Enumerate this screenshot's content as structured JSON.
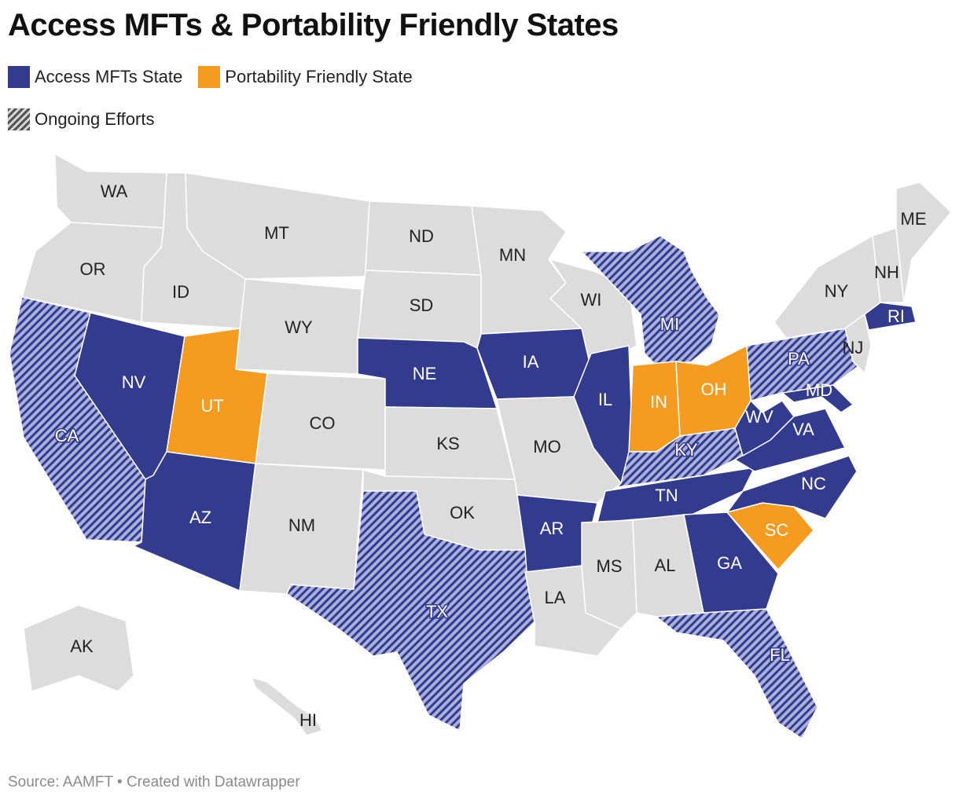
{
  "title": "Access MFTs & Portability Friendly States",
  "legend": {
    "access_label": "Access MFTs State",
    "portability_label": "Portability Friendly State",
    "ongoing_label": "Ongoing Efforts"
  },
  "colors": {
    "access": "#333b8f",
    "portability": "#f59b1f",
    "none": "#dcdcdc",
    "hatch_base": "#aab0dc",
    "hatch_line": "#333b8f"
  },
  "source": "Source: AAMFT • Created with Datawrapper",
  "states": [
    {
      "abbr": "WA",
      "status": "none"
    },
    {
      "abbr": "OR",
      "status": "none"
    },
    {
      "abbr": "CA",
      "status": "ongoing"
    },
    {
      "abbr": "NV",
      "status": "access"
    },
    {
      "abbr": "ID",
      "status": "none"
    },
    {
      "abbr": "MT",
      "status": "none"
    },
    {
      "abbr": "WY",
      "status": "none"
    },
    {
      "abbr": "UT",
      "status": "portability"
    },
    {
      "abbr": "AZ",
      "status": "access"
    },
    {
      "abbr": "CO",
      "status": "none"
    },
    {
      "abbr": "NM",
      "status": "none"
    },
    {
      "abbr": "ND",
      "status": "none"
    },
    {
      "abbr": "SD",
      "status": "none"
    },
    {
      "abbr": "NE",
      "status": "access"
    },
    {
      "abbr": "KS",
      "status": "none"
    },
    {
      "abbr": "OK",
      "status": "none"
    },
    {
      "abbr": "TX",
      "status": "ongoing"
    },
    {
      "abbr": "MN",
      "status": "none"
    },
    {
      "abbr": "IA",
      "status": "access"
    },
    {
      "abbr": "MO",
      "status": "none"
    },
    {
      "abbr": "AR",
      "status": "access"
    },
    {
      "abbr": "LA",
      "status": "none"
    },
    {
      "abbr": "WI",
      "status": "none"
    },
    {
      "abbr": "IL",
      "status": "access"
    },
    {
      "abbr": "MI",
      "status": "ongoing"
    },
    {
      "abbr": "IN",
      "status": "portability"
    },
    {
      "abbr": "OH",
      "status": "portability"
    },
    {
      "abbr": "KY",
      "status": "ongoing"
    },
    {
      "abbr": "TN",
      "status": "access"
    },
    {
      "abbr": "MS",
      "status": "none"
    },
    {
      "abbr": "AL",
      "status": "none"
    },
    {
      "abbr": "GA",
      "status": "access"
    },
    {
      "abbr": "FL",
      "status": "ongoing"
    },
    {
      "abbr": "SC",
      "status": "portability"
    },
    {
      "abbr": "NC",
      "status": "access"
    },
    {
      "abbr": "VA",
      "status": "access"
    },
    {
      "abbr": "WV",
      "status": "access"
    },
    {
      "abbr": "MD",
      "status": "access"
    },
    {
      "abbr": "PA",
      "status": "ongoing"
    },
    {
      "abbr": "NY",
      "status": "none"
    },
    {
      "abbr": "NJ",
      "status": "none"
    },
    {
      "abbr": "RI",
      "status": "access"
    },
    {
      "abbr": "NH",
      "status": "none"
    },
    {
      "abbr": "ME",
      "status": "none"
    },
    {
      "abbr": "AK",
      "status": "none"
    },
    {
      "abbr": "HI",
      "status": "none"
    }
  ]
}
